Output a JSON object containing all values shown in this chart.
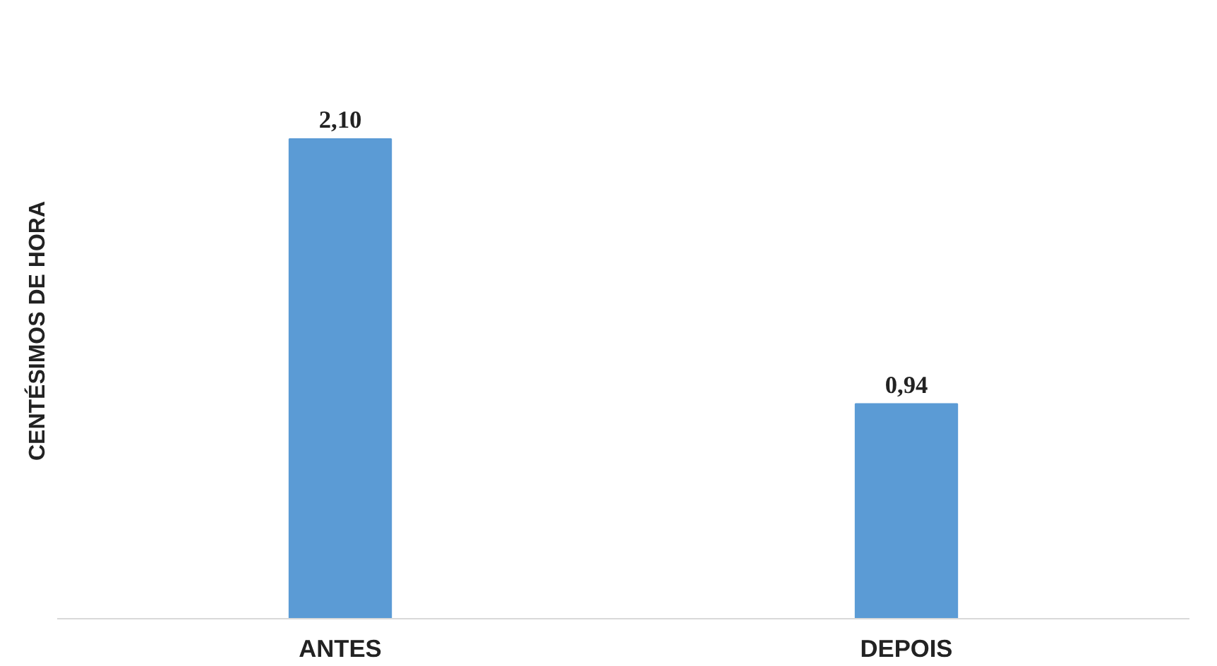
{
  "chart_data": {
    "type": "bar",
    "ylabel": "CENTÉSIMOS DE HORA",
    "categories": [
      "ANTES",
      "DEPOIS"
    ],
    "values": [
      2.1,
      0.94
    ],
    "value_labels": [
      "2,10",
      "0,94"
    ],
    "color": "#5b9bd5"
  }
}
